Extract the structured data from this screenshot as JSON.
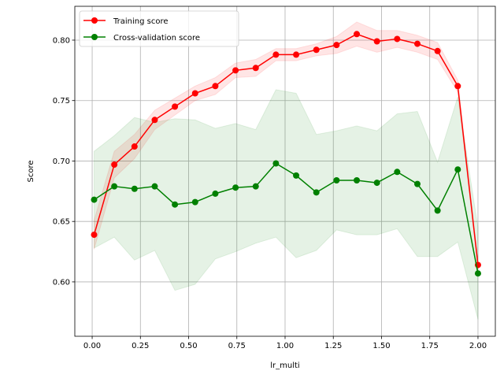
{
  "chart_data": {
    "type": "line",
    "title": "",
    "xlabel": "lr_multi",
    "ylabel": "Score",
    "xlim": [
      -0.09,
      2.09
    ],
    "ylim": [
      0.555,
      0.828
    ],
    "xticks": [
      0.0,
      0.25,
      0.5,
      0.75,
      1.0,
      1.25,
      1.5,
      1.75,
      2.0
    ],
    "xtick_labels": [
      "0.00",
      "0.25",
      "0.50",
      "0.75",
      "1.00",
      "1.25",
      "1.50",
      "1.75",
      "2.00"
    ],
    "yticks": [
      0.6,
      0.65,
      0.7,
      0.75,
      0.8
    ],
    "ytick_labels": [
      "0.60",
      "0.65",
      "0.70",
      "0.75",
      "0.80"
    ],
    "grid": true,
    "legend_position": "upper-left",
    "x": [
      0.01,
      0.1147,
      0.2195,
      0.3242,
      0.4289,
      0.5337,
      0.6384,
      0.7432,
      0.8479,
      0.9526,
      1.0574,
      1.1621,
      1.2668,
      1.3716,
      1.4763,
      1.5811,
      1.6858,
      1.7905,
      1.8953,
      2.0
    ],
    "series": [
      {
        "name": "Training score",
        "color": "#ff0000",
        "band_color": "#ff0000",
        "values": [
          0.639,
          0.697,
          0.712,
          0.734,
          0.745,
          0.756,
          0.762,
          0.775,
          0.777,
          0.788,
          0.788,
          0.792,
          0.796,
          0.805,
          0.799,
          0.801,
          0.797,
          0.791,
          0.762,
          0.614
        ],
        "upper": [
          0.651,
          0.708,
          0.722,
          0.742,
          0.752,
          0.762,
          0.769,
          0.781,
          0.784,
          0.793,
          0.793,
          0.797,
          0.803,
          0.815,
          0.808,
          0.808,
          0.804,
          0.798,
          0.767,
          0.616
        ],
        "lower": [
          0.627,
          0.686,
          0.702,
          0.726,
          0.738,
          0.75,
          0.755,
          0.769,
          0.77,
          0.783,
          0.783,
          0.787,
          0.789,
          0.795,
          0.79,
          0.794,
          0.79,
          0.784,
          0.757,
          0.612
        ]
      },
      {
        "name": "Cross-validation score",
        "color": "#008000",
        "band_color": "#008000",
        "values": [
          0.668,
          0.679,
          0.677,
          0.679,
          0.664,
          0.666,
          0.673,
          0.678,
          0.679,
          0.698,
          0.688,
          0.674,
          0.684,
          0.684,
          0.682,
          0.691,
          0.681,
          0.659,
          0.693,
          0.607
        ],
        "upper": [
          0.708,
          0.721,
          0.736,
          0.732,
          0.735,
          0.734,
          0.727,
          0.731,
          0.726,
          0.759,
          0.756,
          0.722,
          0.725,
          0.729,
          0.725,
          0.739,
          0.741,
          0.699,
          0.753,
          0.645
        ],
        "lower": [
          0.628,
          0.637,
          0.618,
          0.626,
          0.593,
          0.598,
          0.619,
          0.625,
          0.632,
          0.637,
          0.62,
          0.626,
          0.643,
          0.639,
          0.639,
          0.644,
          0.621,
          0.621,
          0.633,
          0.569
        ]
      }
    ]
  }
}
